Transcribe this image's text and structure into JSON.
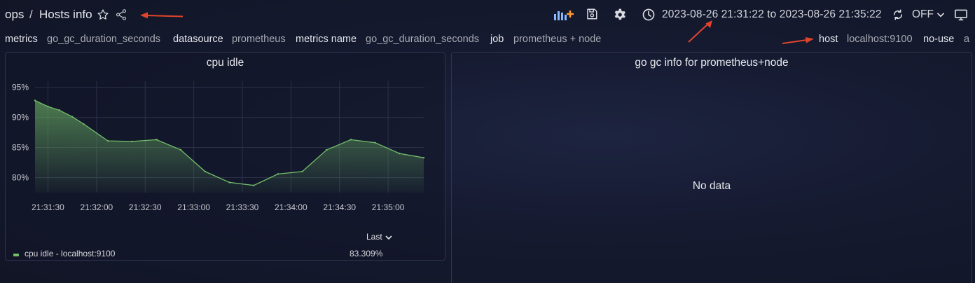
{
  "header": {
    "folder": "ops",
    "separator": "/",
    "dashboard_title": "Hosts info",
    "icons": [
      "star-icon",
      "share-icon"
    ]
  },
  "toolbar": {
    "icons": [
      "add-panel-icon",
      "save-icon",
      "settings-icon",
      "clock-icon",
      "refresh-icon",
      "chevron-down-icon",
      "tv-mode-icon"
    ],
    "time_range": "2023-08-26 21:31:22 to 2023-08-26 21:35:22",
    "refresh_interval": "OFF"
  },
  "variables": [
    {
      "label": "metrics",
      "value": "go_gc_duration_seconds"
    },
    {
      "label": "datasource",
      "value": "prometheus"
    },
    {
      "label": "metrics name",
      "value": "go_gc_duration_seconds"
    },
    {
      "label": "job",
      "value": "prometheus + node"
    },
    {
      "label": "host",
      "value": "localhost:9100"
    },
    {
      "label": "no-use",
      "value": "a"
    }
  ],
  "annotation_arrow_color": "#e0442c",
  "panels": {
    "cpu": {
      "title": "cpu idle",
      "legend_header": "Last",
      "legend_items": [
        {
          "name": "cpu idle - localhost:9100",
          "last": "83.309%",
          "color": "#73bf69"
        }
      ]
    },
    "gc": {
      "title": "go gc info for prometheus+node",
      "no_data": "No data"
    }
  },
  "chart_data": {
    "type": "area",
    "title": "cpu idle",
    "xlabel": "",
    "ylabel": "",
    "x_ticks": [
      "21:31:30",
      "21:32:00",
      "21:32:30",
      "21:33:00",
      "21:33:30",
      "21:34:00",
      "21:34:30",
      "21:35:00"
    ],
    "y_ticks": [
      "80%",
      "85%",
      "90%",
      "95%"
    ],
    "y_tick_values": [
      80,
      85,
      90,
      95
    ],
    "ylim": [
      77.5,
      96.0
    ],
    "grid": true,
    "legend": "bottom",
    "series": [
      {
        "name": "cpu idle - localhost:9100",
        "color": "#73bf69",
        "x": [
          "21:31:22",
          "21:31:30",
          "21:31:37",
          "21:31:45",
          "21:31:52",
          "21:32:07",
          "21:32:22",
          "21:32:37",
          "21:32:52",
          "21:33:07",
          "21:33:22",
          "21:33:37",
          "21:33:52",
          "21:34:07",
          "21:34:22",
          "21:34:37",
          "21:34:52",
          "21:35:07",
          "21:35:22"
        ],
        "values": [
          92.8,
          91.8,
          91.2,
          90.1,
          88.9,
          86.1,
          86.0,
          86.3,
          84.6,
          81.0,
          79.2,
          78.7,
          80.6,
          81.0,
          84.6,
          86.3,
          85.8,
          84.0,
          83.3
        ]
      }
    ]
  }
}
